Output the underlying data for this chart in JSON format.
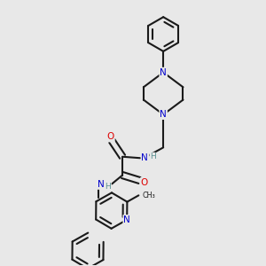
{
  "background_color": "#e8e8e8",
  "bond_color": "#1a1a1a",
  "N_color": "#0000cc",
  "O_color": "#dd0000",
  "H_color": "#5a9090",
  "line_width": 1.5,
  "dbo": 0.012,
  "figsize": [
    3.0,
    3.0
  ],
  "dpi": 100,
  "xlim": [
    0,
    1
  ],
  "ylim": [
    0,
    1
  ]
}
